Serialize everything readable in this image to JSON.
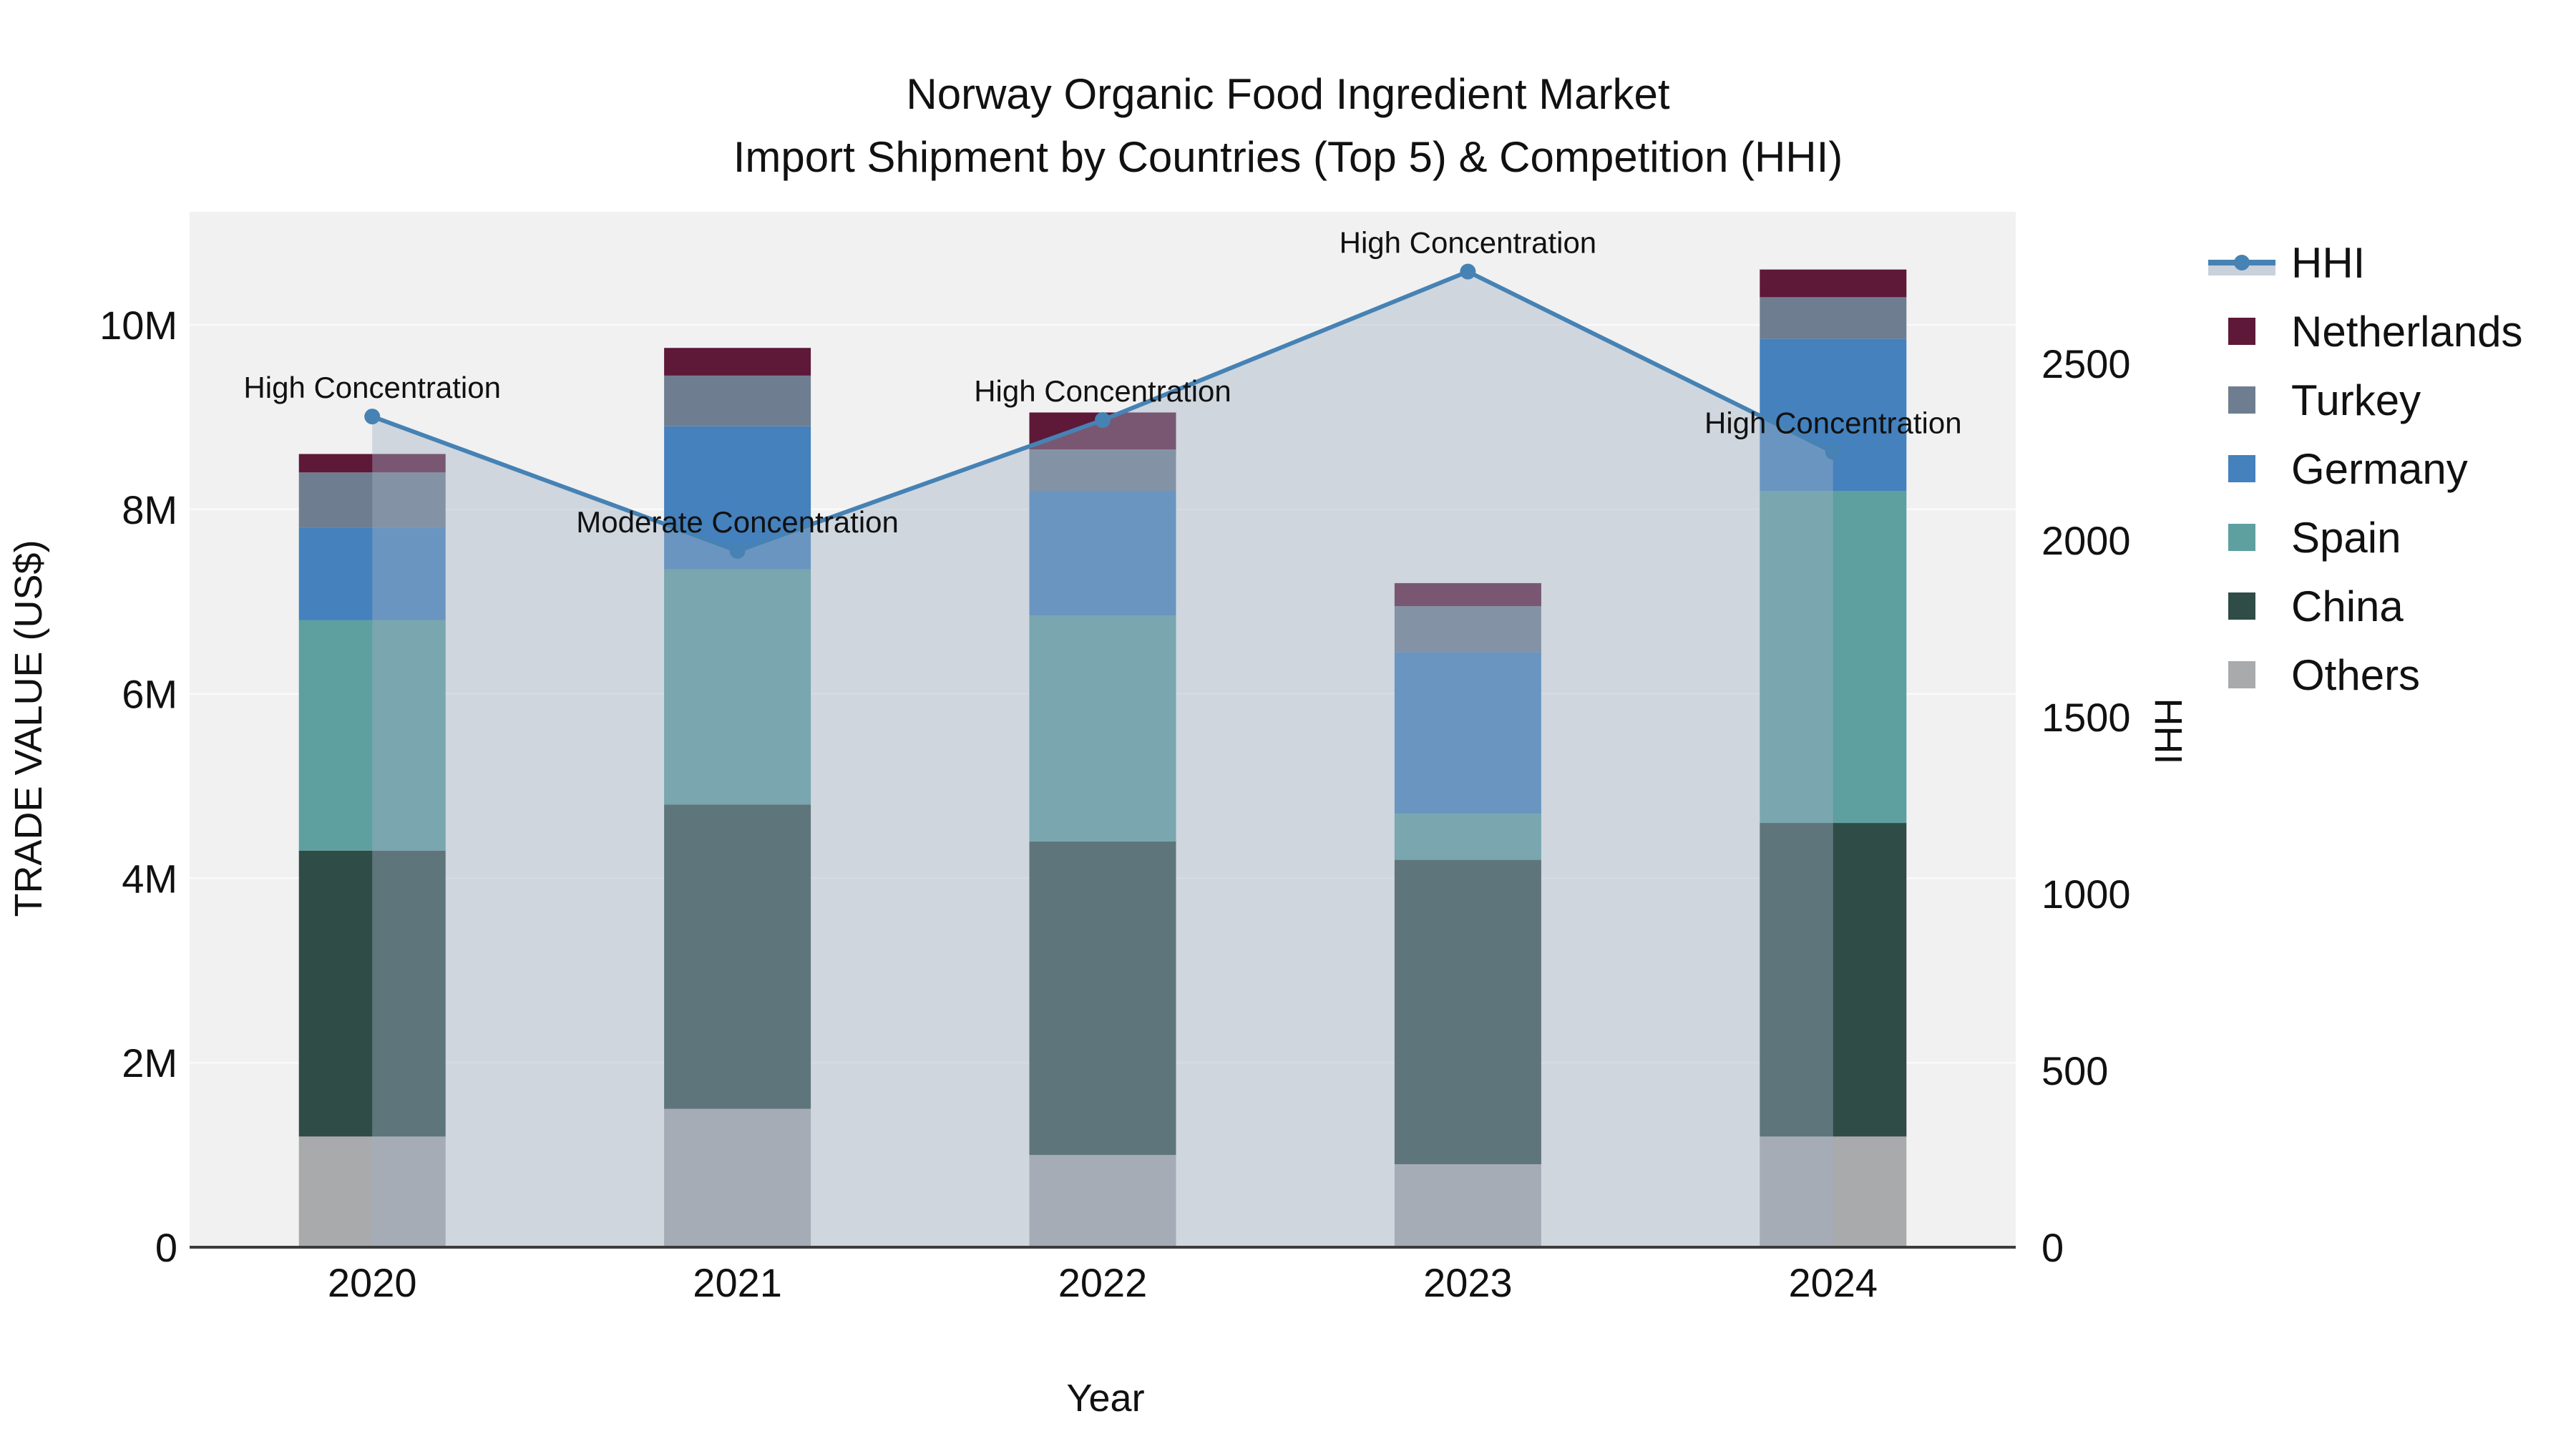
{
  "title": {
    "line1": "Norway Organic Food Ingredient Market",
    "line2": "Import Shipment by Countries (Top 5) & Competition (HHI)"
  },
  "axes": {
    "x": {
      "title": "Year",
      "ticks": [
        "2020",
        "2021",
        "2022",
        "2023",
        "2024"
      ]
    },
    "left": {
      "title": "TRADE VALUE (US$)",
      "ticks": [
        "0",
        "2M",
        "4M",
        "6M",
        "8M",
        "10M"
      ],
      "tick_values_musd": [
        0,
        2,
        4,
        6,
        8,
        10
      ]
    },
    "right": {
      "title": "HHI",
      "ticks": [
        "0",
        "500",
        "1000",
        "1500",
        "2000",
        "2500"
      ],
      "tick_values": [
        0,
        500,
        1000,
        1500,
        2000,
        2500
      ]
    }
  },
  "legend": {
    "items": [
      {
        "label": "HHI",
        "type": "line",
        "key": "HHI"
      },
      {
        "label": "Netherlands",
        "type": "swatch",
        "key": "Netherlands"
      },
      {
        "label": "Turkey",
        "type": "swatch",
        "key": "Turkey"
      },
      {
        "label": "Germany",
        "type": "swatch",
        "key": "Germany"
      },
      {
        "label": "Spain",
        "type": "swatch",
        "key": "Spain"
      },
      {
        "label": "China",
        "type": "swatch",
        "key": "China"
      },
      {
        "label": "Others",
        "type": "swatch",
        "key": "Others"
      }
    ]
  },
  "annotations": [
    {
      "year": "2020",
      "text": "High Concentration"
    },
    {
      "year": "2021",
      "text": "Moderate Concentration"
    },
    {
      "year": "2022",
      "text": "High Concentration"
    },
    {
      "year": "2023",
      "text": "High Concentration"
    },
    {
      "year": "2024",
      "text": "High Concentration"
    }
  ],
  "colors": {
    "plot_bg": "#f1f1f2",
    "grid": "#fafafb",
    "axis_line": "#3c3c3c",
    "text": "#111111",
    "hhi_line": "#4682b4",
    "hhi_area_fill": "rgba(159,176,196,0.42)",
    "legend_fill_band": "#c9d1db",
    "series": {
      "Others": "#a9aaac",
      "China": "#2f4c47",
      "Spain": "#5e9fa0",
      "Germany": "#4481bd",
      "Turkey": "#6e7e90",
      "Netherlands": "#5e1838"
    }
  },
  "chart_data": {
    "type": "combo: stacked bar + line",
    "categories": [
      "2020",
      "2021",
      "2022",
      "2023",
      "2024"
    ],
    "bar_value_unit": "million US$",
    "bar_series_bottom_to_top": [
      {
        "name": "Others",
        "values": [
          1.2,
          1.5,
          1.0,
          0.9,
          1.2
        ]
      },
      {
        "name": "China",
        "values": [
          3.1,
          3.3,
          3.4,
          3.3,
          3.4
        ]
      },
      {
        "name": "Spain",
        "values": [
          2.5,
          2.55,
          2.45,
          0.5,
          3.6
        ]
      },
      {
        "name": "Germany",
        "values": [
          1.0,
          1.55,
          1.35,
          1.75,
          1.65
        ]
      },
      {
        "name": "Turkey",
        "values": [
          0.6,
          0.55,
          0.45,
          0.5,
          0.45
        ]
      },
      {
        "name": "Netherlands",
        "values": [
          0.2,
          0.3,
          0.4,
          0.25,
          0.3
        ]
      }
    ],
    "bar_totals_musd": [
      8.6,
      9.75,
      9.05,
      7.2,
      10.6
    ],
    "line_series": {
      "name": "HHI",
      "axis": "right",
      "values": [
        2350,
        1970,
        2340,
        2760,
        2250
      ],
      "area_fill_to_zero": true
    },
    "left_axis_range_musd": [
      0,
      11.23
    ],
    "right_axis_range": [
      0,
      2930
    ],
    "grid": true,
    "legend_position": "right",
    "xlabel": "Year",
    "ylabel_left": "TRADE VALUE (US$)",
    "ylabel_right": "HHI"
  }
}
